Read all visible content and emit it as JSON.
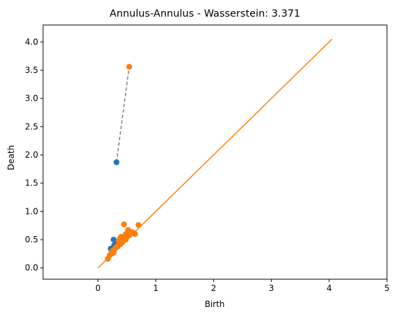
{
  "chart_data": {
    "type": "scatter",
    "title": "Annulus-Annulus - Wasserstein: 3.371",
    "xlabel": "Birth",
    "ylabel": "Death",
    "xlim": [
      -0.95,
      5.0
    ],
    "ylim": [
      -0.2,
      4.3
    ],
    "xticks": [
      0,
      1,
      2,
      3,
      4,
      5
    ],
    "yticks": [
      0.0,
      0.5,
      1.0,
      1.5,
      2.0,
      2.5,
      3.0,
      3.5,
      4.0
    ],
    "grid": false,
    "colors": {
      "series_1": "#1f77b4",
      "series_2": "#ff7f0e",
      "matching": "#7f7f7f"
    },
    "diagonal": {
      "from": [
        0.0,
        0.0
      ],
      "to": [
        4.05,
        4.05
      ],
      "color": "#ff7f0e"
    },
    "series": [
      {
        "values": [
          [
            0.32,
            1.87
          ],
          [
            0.27,
            0.5
          ],
          [
            0.22,
            0.34
          ],
          [
            0.25,
            0.3
          ],
          [
            0.28,
            0.4
          ],
          [
            0.3,
            0.36
          ],
          [
            0.24,
            0.26
          ],
          [
            0.33,
            0.42
          ],
          [
            0.36,
            0.45
          ],
          [
            0.4,
            0.5
          ],
          [
            0.45,
            0.55
          ],
          [
            0.5,
            0.6
          ],
          [
            0.55,
            0.64
          ],
          [
            0.29,
            0.33
          ],
          [
            0.26,
            0.28
          ],
          [
            0.34,
            0.38
          ],
          [
            0.42,
            0.46
          ],
          [
            0.23,
            0.25
          ]
        ]
      },
      {
        "values": [
          [
            0.54,
            3.56
          ],
          [
            0.45,
            0.77
          ],
          [
            0.7,
            0.76
          ],
          [
            0.52,
            0.67
          ],
          [
            0.6,
            0.63
          ],
          [
            0.55,
            0.58
          ],
          [
            0.48,
            0.6
          ],
          [
            0.4,
            0.55
          ],
          [
            0.45,
            0.5
          ],
          [
            0.38,
            0.52
          ],
          [
            0.35,
            0.4
          ],
          [
            0.3,
            0.35
          ],
          [
            0.28,
            0.32
          ],
          [
            0.25,
            0.3
          ],
          [
            0.2,
            0.22
          ],
          [
            0.17,
            0.16
          ],
          [
            0.33,
            0.38
          ],
          [
            0.42,
            0.45
          ],
          [
            0.5,
            0.55
          ],
          [
            0.36,
            0.48
          ],
          [
            0.64,
            0.6
          ],
          [
            0.48,
            0.5
          ],
          [
            0.27,
            0.27
          ],
          [
            0.39,
            0.42
          ]
        ]
      }
    ],
    "matchings": [
      {
        "from": [
          0.32,
          1.87
        ],
        "to": [
          0.54,
          3.56
        ]
      },
      {
        "from": [
          0.27,
          0.5
        ],
        "to": [
          0.29,
          0.29
        ]
      },
      {
        "from": [
          0.36,
          0.45
        ],
        "to": [
          0.38,
          0.52
        ]
      },
      {
        "from": [
          0.5,
          0.6
        ],
        "to": [
          0.52,
          0.67
        ]
      }
    ]
  }
}
